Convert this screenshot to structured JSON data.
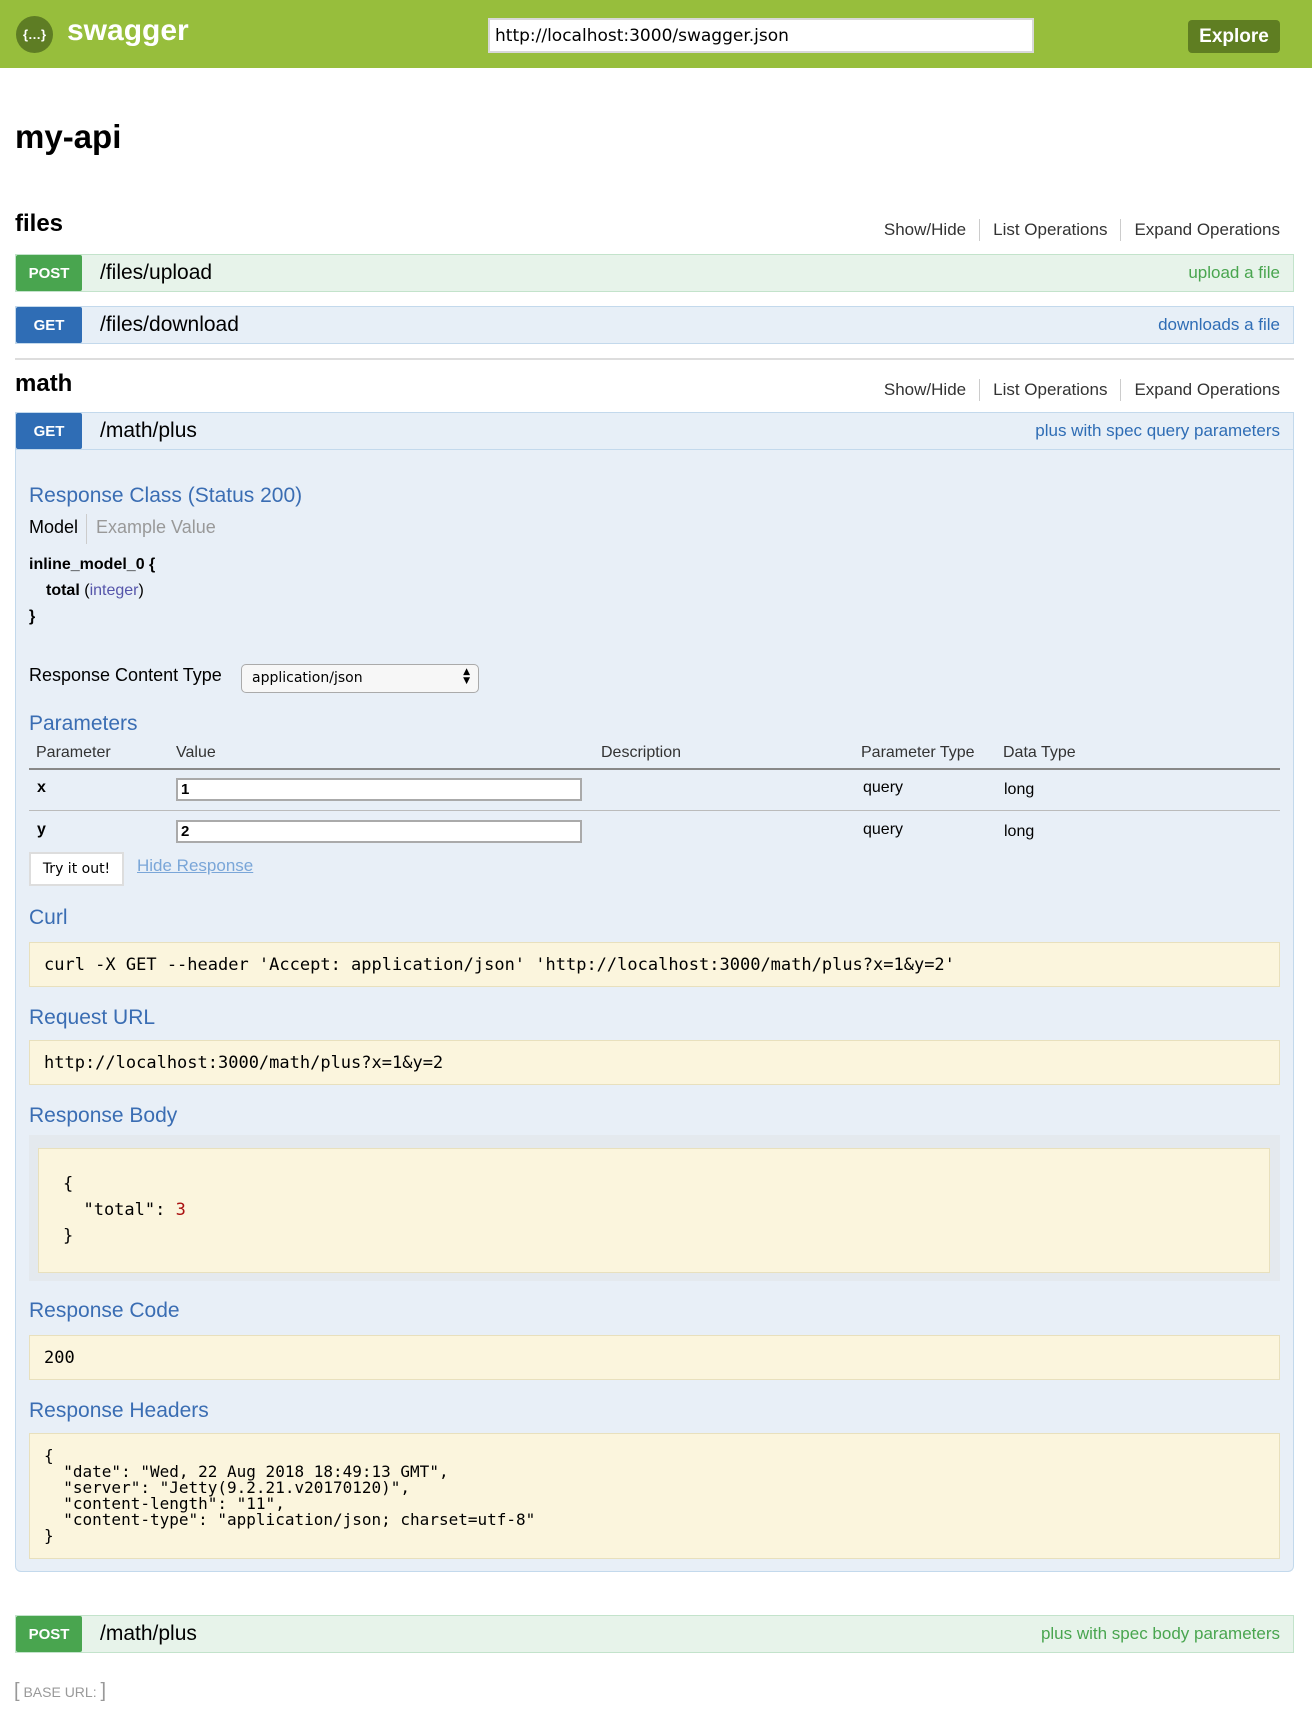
{
  "header": {
    "brand": "swagger",
    "logo_glyph": "{…}",
    "url_value": "http://localhost:3000/swagger.json",
    "explore_label": "Explore"
  },
  "api_title": "my-api",
  "resources": [
    {
      "name": "files",
      "links": [
        "Show/Hide",
        "List Operations",
        "Expand Operations"
      ],
      "operations": [
        {
          "method": "POST",
          "path": "/files/upload",
          "summary": "upload a file"
        },
        {
          "method": "GET",
          "path": "/files/download",
          "summary": "downloads a file"
        }
      ]
    },
    {
      "name": "math",
      "links": [
        "Show/Hide",
        "List Operations",
        "Expand Operations"
      ],
      "operations": [
        {
          "method": "GET",
          "path": "/math/plus",
          "summary": "plus with spec query parameters"
        },
        {
          "method": "POST",
          "path": "/math/plus",
          "summary": "plus with spec body parameters"
        }
      ]
    }
  ],
  "expanded": {
    "response_class_title": "Response Class (Status 200)",
    "model_tab": "Model",
    "example_tab": "Example Value",
    "model": {
      "name": "inline_model_0 {",
      "prop": "total",
      "type_open": " (",
      "type": "integer",
      "type_close": ")",
      "close": "}"
    },
    "content_type_label": "Response Content Type",
    "content_type_value": "application/json",
    "parameters_title": "Parameters",
    "param_headers": [
      "Parameter",
      "Value",
      "Description",
      "Parameter Type",
      "Data Type"
    ],
    "params": [
      {
        "name": "x",
        "value": "1",
        "type": "query",
        "data_type": "long"
      },
      {
        "name": "y",
        "value": "2",
        "type": "query",
        "data_type": "long"
      }
    ],
    "try_label": "Try it out!",
    "hide_label": "Hide Response",
    "curl_title": "Curl",
    "curl": "curl -X GET --header 'Accept: application/json' 'http://localhost:3000/math/plus?x=1&y=2'",
    "request_url_title": "Request URL",
    "request_url": "http://localhost:3000/math/plus?x=1&y=2",
    "response_body_title": "Response Body",
    "body_open": "{",
    "body_key": "  \"total\": ",
    "body_value": "3",
    "body_close": "}",
    "response_code_title": "Response Code",
    "response_code": "200",
    "response_headers_title": "Response Headers",
    "response_headers": "{\n  \"date\": \"Wed, 22 Aug 2018 18:49:13 GMT\",\n  \"server\": \"Jetty(9.2.21.v20170120)\",\n  \"content-length\": \"11\",\n  \"content-type\": \"application/json; charset=utf-8\"\n}"
  },
  "footer": {
    "base_url_label": "BASE URL:"
  },
  "colors": {
    "header": "#97be3c",
    "post": "#49a54f",
    "get": "#2f6db5",
    "heading": "#3a6db3",
    "code_bg": "#fbf5dd"
  }
}
